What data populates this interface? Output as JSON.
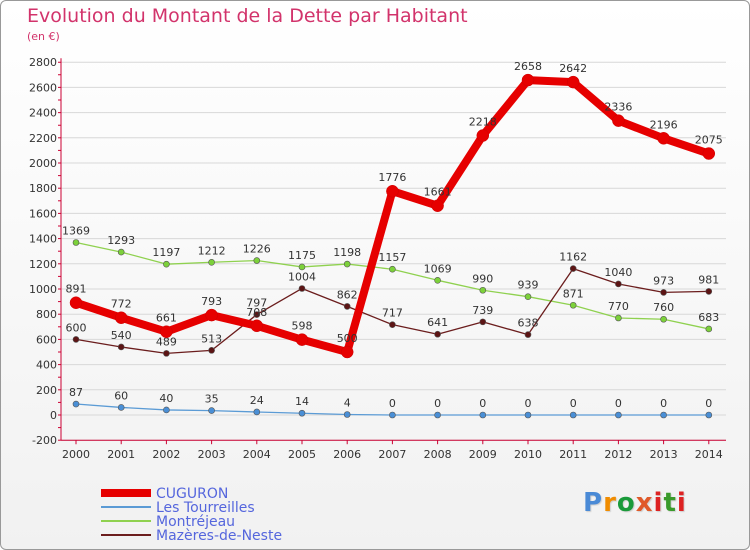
{
  "title": "Evolution du Montant de la Dette par Habitant",
  "subtitle": "(en €)",
  "logo": {
    "text": "Proxiti",
    "colors": [
      "#4a8ad6",
      "#f08c00",
      "#1a9a3a",
      "#e05a2a",
      "#d22",
      "#3a9a2a",
      "#d22"
    ]
  },
  "chart_data": {
    "type": "line",
    "title": "Evolution du Montant de la Dette par Habitant",
    "ylabel": "(en €)",
    "ylim": [
      -200,
      2800
    ],
    "yticks": [
      -200,
      0,
      200,
      400,
      600,
      800,
      1000,
      1200,
      1400,
      1600,
      1800,
      2000,
      2200,
      2400,
      2600,
      2800
    ],
    "x": [
      "2000",
      "2001",
      "2002",
      "2003",
      "2004",
      "2005",
      "2006",
      "2007",
      "2008",
      "2009",
      "2010",
      "2011",
      "2012",
      "2013",
      "2014"
    ],
    "series": [
      {
        "name": "Les Tourreilles",
        "color": "#5b9bd5",
        "values": [
          87,
          60,
          40,
          35,
          24,
          14,
          4,
          0,
          0,
          0,
          0,
          0,
          0,
          0,
          0
        ]
      },
      {
        "name": "Montréjeau",
        "color": "#8fd14f",
        "values": [
          1369,
          1293,
          1197,
          1212,
          1226,
          1175,
          1198,
          1157,
          1069,
          990,
          939,
          871,
          770,
          760,
          683
        ]
      },
      {
        "name": "Mazères-de-Neste",
        "color": "#6b1d1d",
        "values": [
          600,
          540,
          489,
          513,
          797,
          1004,
          862,
          717,
          641,
          739,
          638,
          1162,
          1040,
          973,
          981
        ]
      },
      {
        "name": "CUGURON",
        "color": "#e60000",
        "values": [
          891,
          772,
          661,
          793,
          708,
          598,
          500,
          1776,
          1661,
          2218,
          2658,
          2642,
          2336,
          2196,
          2075
        ]
      }
    ],
    "legend": [
      "CUGURON",
      "Les Tourreilles",
      "Montréjeau",
      "Mazères-de-Neste"
    ]
  }
}
